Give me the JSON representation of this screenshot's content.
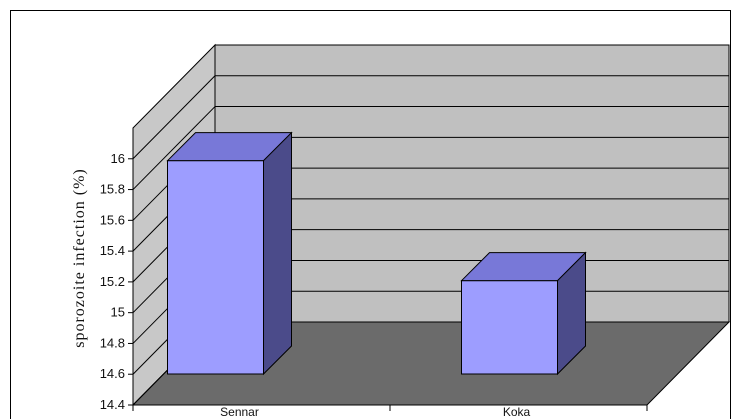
{
  "chart_data": {
    "type": "bar",
    "title": "",
    "xlabel": "",
    "ylabel": "sporozoite infection (%)",
    "categories": [
      "Sennar",
      "Koka"
    ],
    "values": [
      16.0,
      15.1
    ],
    "ylim": [
      14.4,
      16.2
    ],
    "yticks": [
      "14.4",
      "14.6",
      "14.8",
      "15",
      "15.2",
      "15.4",
      "15.6",
      "15.8",
      "16"
    ],
    "grid": true,
    "legend": "none",
    "three_d": true,
    "colors": {
      "bar_front": "#9d9dff",
      "bar_top": "#7878d8",
      "bar_side": "#4b4b8a",
      "back_wall": "#c0c0c0",
      "side_wall": "#c8c8c8",
      "floor": "#6b6b6b",
      "grid_line": "#000000"
    }
  }
}
